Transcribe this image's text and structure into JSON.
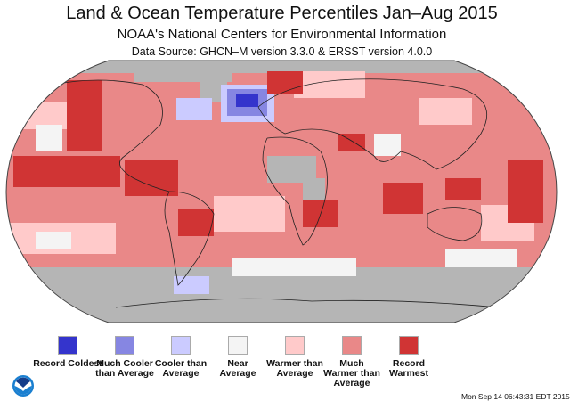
{
  "header": {
    "title": "Land & Ocean Temperature Percentiles Jan–Aug 2015",
    "subtitle": "NOAA's National Centers for Environmental Information",
    "data_source": "Data Source: GHCN–M version 3.3.0 & ERSST version 4.0.0"
  },
  "legend": [
    {
      "label": "Record Coldest",
      "color": "#3434cc"
    },
    {
      "label": "Much Cooler than Average",
      "color": "#8686e2"
    },
    {
      "label": "Cooler than Average",
      "color": "#cbcbff"
    },
    {
      "label": "Near Average",
      "color": "#f4f4f4"
    },
    {
      "label": "Warmer than Average",
      "color": "#ffcaca"
    },
    {
      "label": "Much Warmer than Average",
      "color": "#e98888"
    },
    {
      "label": "Record Warmest",
      "color": "#d03434"
    }
  ],
  "no_data_color": "#b5b5b5",
  "timestamp": "Mon Sep 14 06:43:31 EDT 2015",
  "logo": "NOAA"
}
